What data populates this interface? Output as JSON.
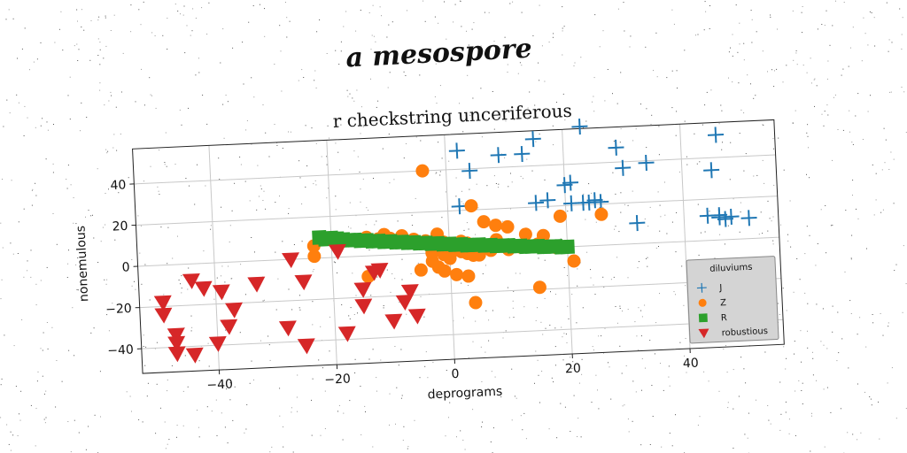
{
  "suptitle": "a mesospore",
  "chart_data": {
    "type": "scatter",
    "title": "r checkstring unceriferous",
    "xlabel": "deprograms",
    "ylabel": "nonemulous",
    "xlim": [
      -53,
      56
    ],
    "ylim": [
      -52,
      57
    ],
    "xticks": [
      -40,
      -20,
      0,
      20,
      40
    ],
    "yticks": [
      -40,
      -20,
      0,
      20,
      40
    ],
    "grid": true,
    "legend": {
      "title": "diluviums",
      "position": "lower-right"
    },
    "series": [
      {
        "name": "J",
        "marker": "plus",
        "color": "#1f77b4",
        "points": [
          [
            2,
            49
          ],
          [
            4,
            39
          ],
          [
            9,
            46
          ],
          [
            13,
            46
          ],
          [
            15,
            53
          ],
          [
            23,
            58
          ],
          [
            29,
            47
          ],
          [
            30,
            37
          ],
          [
            34,
            39
          ],
          [
            45,
            34
          ],
          [
            46,
            51
          ],
          [
            2,
            22
          ],
          [
            15,
            22
          ],
          [
            17,
            23
          ],
          [
            20,
            30
          ],
          [
            21,
            31
          ],
          [
            21,
            21
          ],
          [
            23,
            21
          ],
          [
            24,
            21
          ],
          [
            25,
            22
          ],
          [
            26,
            21
          ],
          [
            32,
            10
          ],
          [
            44,
            12
          ],
          [
            46,
            12
          ],
          [
            46,
            11
          ],
          [
            47,
            10
          ],
          [
            48,
            11
          ],
          [
            51,
            10
          ]
        ]
      },
      {
        "name": "Z",
        "marker": "circle",
        "color": "#ff7f0e",
        "points": [
          [
            -4,
            40
          ],
          [
            4,
            22
          ],
          [
            6,
            14
          ],
          [
            8,
            12
          ],
          [
            10,
            11
          ],
          [
            13,
            7
          ],
          [
            16,
            6
          ],
          [
            19,
            15
          ],
          [
            26,
            15
          ],
          [
            -23,
            6
          ],
          [
            -23,
            1
          ],
          [
            -14,
            9
          ],
          [
            -12,
            8
          ],
          [
            -11,
            10
          ],
          [
            -10,
            8
          ],
          [
            -8,
            9
          ],
          [
            -6,
            7
          ],
          [
            -4,
            6
          ],
          [
            -2,
            9
          ],
          [
            -1,
            5
          ],
          [
            0,
            4
          ],
          [
            1,
            3
          ],
          [
            2,
            5
          ],
          [
            3,
            4
          ],
          [
            5,
            3
          ],
          [
            7,
            2
          ],
          [
            -3,
            0
          ],
          [
            -1,
            -1
          ],
          [
            0,
            -3
          ],
          [
            1,
            1
          ],
          [
            2,
            0
          ],
          [
            3,
            -1
          ],
          [
            4,
            -2
          ],
          [
            -2,
            -7
          ],
          [
            -1,
            -9
          ],
          [
            1,
            -11
          ],
          [
            3,
            -12
          ],
          [
            5,
            -2
          ],
          [
            7,
            0
          ],
          [
            10,
            0
          ],
          [
            12,
            1
          ],
          [
            15,
            2
          ],
          [
            18,
            0
          ],
          [
            -14,
            -10
          ],
          [
            -5,
            -8
          ],
          [
            -3,
            -4
          ],
          [
            4,
            -25
          ],
          [
            15,
            -19
          ],
          [
            21,
            -7
          ],
          [
            8,
            5
          ]
        ]
      },
      {
        "name": "R",
        "marker": "square",
        "color": "#2ca02c",
        "points": [
          [
            -22,
            10
          ],
          [
            -21,
            9
          ],
          [
            -20,
            9.5
          ],
          [
            -19,
            9
          ],
          [
            -18,
            8.5
          ],
          [
            -17,
            8
          ],
          [
            -16,
            8
          ],
          [
            -15,
            7.5
          ],
          [
            -14,
            7.5
          ],
          [
            -13,
            7
          ],
          [
            -12,
            7
          ],
          [
            -11,
            6.5
          ],
          [
            -10,
            6.5
          ],
          [
            -9,
            6
          ],
          [
            -8,
            6
          ],
          [
            -7,
            5.5
          ],
          [
            -6,
            5.5
          ],
          [
            -5,
            5
          ],
          [
            -4,
            5
          ],
          [
            -3,
            4.5
          ],
          [
            -2,
            4.5
          ],
          [
            -1,
            4
          ],
          [
            0,
            4
          ],
          [
            1,
            3.5
          ],
          [
            2,
            3.5
          ],
          [
            3,
            3
          ],
          [
            4,
            3
          ],
          [
            5,
            3
          ],
          [
            6,
            2.5
          ],
          [
            7,
            2.5
          ],
          [
            8,
            2
          ],
          [
            9,
            2
          ],
          [
            10,
            2
          ],
          [
            11,
            1.5
          ],
          [
            12,
            1.5
          ],
          [
            13,
            1
          ],
          [
            14,
            1
          ],
          [
            15,
            1
          ],
          [
            16,
            0.5
          ],
          [
            17,
            0.5
          ],
          [
            18,
            0.5
          ],
          [
            19,
            0
          ],
          [
            20,
            0
          ]
        ]
      },
      {
        "name": "robustious",
        "marker": "triangle-down",
        "color": "#d62728",
        "points": [
          [
            -49,
            -18
          ],
          [
            -49,
            -24
          ],
          [
            -47,
            -34
          ],
          [
            -47,
            -38
          ],
          [
            -47,
            -43
          ],
          [
            -44,
            -44
          ],
          [
            -44,
            -8
          ],
          [
            -42,
            -12
          ],
          [
            -40,
            -39
          ],
          [
            -39,
            -14
          ],
          [
            -38,
            -31
          ],
          [
            -37,
            -23
          ],
          [
            -33,
            -11
          ],
          [
            -28,
            -33
          ],
          [
            -27,
            0
          ],
          [
            -25,
            -11
          ],
          [
            -25,
            -42
          ],
          [
            -19,
            3
          ],
          [
            -18,
            -37
          ],
          [
            -15,
            -16
          ],
          [
            -15,
            -24
          ],
          [
            -13,
            -8
          ],
          [
            -12,
            -7
          ],
          [
            -10,
            -32
          ],
          [
            -8,
            -23
          ],
          [
            -7,
            -18
          ],
          [
            -6,
            -30
          ]
        ]
      }
    ]
  }
}
